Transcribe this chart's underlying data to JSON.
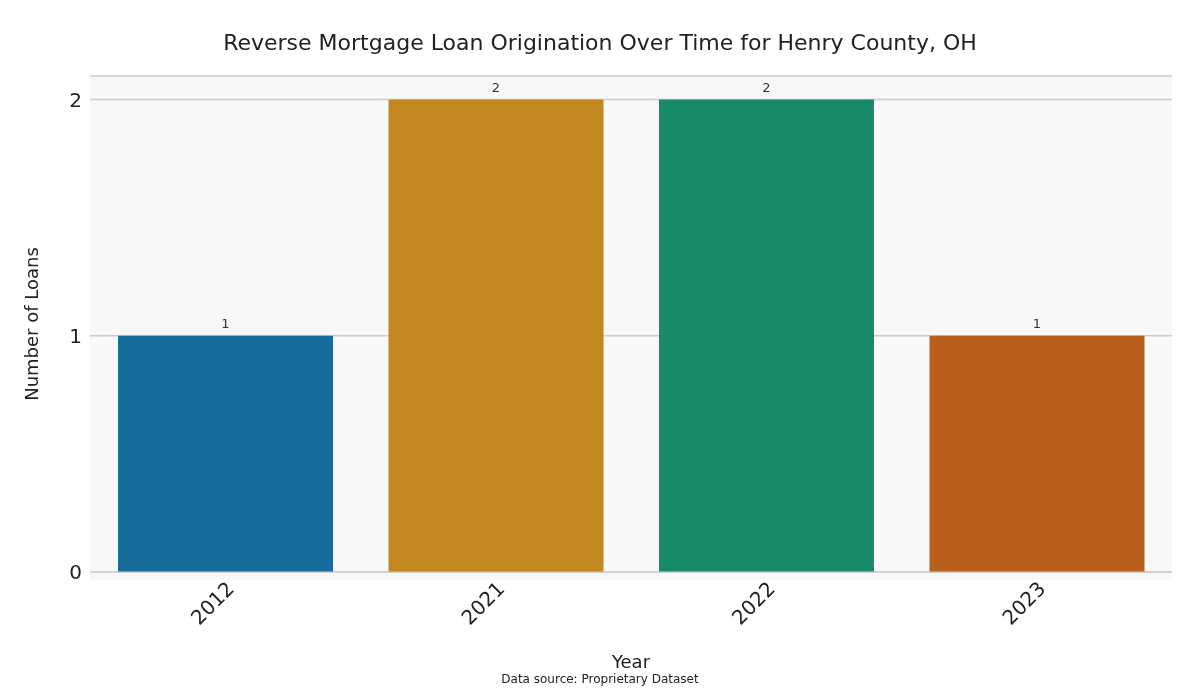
{
  "chart_data": {
    "type": "bar",
    "title": "Reverse Mortgage Loan Origination Over Time for Henry County, OH",
    "categories": [
      "2012",
      "2021",
      "2022",
      "2023"
    ],
    "values": [
      1,
      2,
      2,
      1
    ],
    "colors": [
      "#196d9d",
      "#c38820",
      "#178b69",
      "#b9601f"
    ],
    "xlabel": "Year",
    "ylabel": "Number of Loans",
    "ylim": [
      0,
      2.1
    ],
    "yticks": [
      0,
      1,
      2
    ],
    "grid": "y",
    "data_labels": true,
    "annotations": [
      "Data source: Proprietary Dataset"
    ]
  }
}
